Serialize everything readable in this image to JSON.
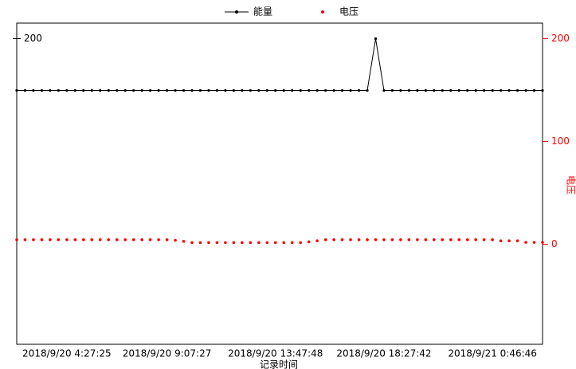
{
  "chart_data": {
    "type": "line",
    "legend": "top",
    "x_label": "记录时间",
    "y2_label": "电压",
    "categories": [
      null,
      null,
      null,
      null,
      null,
      null,
      "2018/9/20 4:27:25",
      null,
      null,
      null,
      null,
      null,
      null,
      null,
      null,
      null,
      null,
      null,
      "2018/9/20 9:07:27",
      null,
      null,
      null,
      null,
      null,
      null,
      null,
      null,
      null,
      null,
      null,
      null,
      "2018/9/20 13:47:48",
      null,
      null,
      null,
      null,
      null,
      null,
      null,
      null,
      null,
      null,
      null,
      null,
      "2018/9/20 18:27:42",
      null,
      null,
      null,
      null,
      null,
      null,
      null,
      null,
      null,
      null,
      null,
      null,
      "2018/9/21 0:46:46",
      null,
      null,
      null,
      null,
      null,
      null
    ],
    "series": [
      {
        "name": "能量",
        "color": "#000000",
        "marker": "dot-line",
        "values": [
          150,
          150,
          150,
          150,
          150,
          150,
          150,
          150,
          150,
          150,
          150,
          150,
          150,
          150,
          150,
          150,
          150,
          150,
          150,
          150,
          150,
          150,
          150,
          150,
          150,
          150,
          150,
          150,
          150,
          150,
          150,
          150,
          150,
          150,
          150,
          150,
          150,
          150,
          150,
          150,
          150,
          150,
          150,
          200,
          150,
          150,
          150,
          150,
          150,
          150,
          150,
          150,
          150,
          150,
          150,
          150,
          150,
          150,
          150,
          150,
          150,
          150,
          150,
          150
        ]
      },
      {
        "name": "电压",
        "color": "#ff0000",
        "marker": "dots",
        "axis": "y2",
        "values": [
          4.6,
          4.6,
          4.6,
          4.6,
          4.6,
          4.6,
          4.6,
          4.6,
          4.6,
          4.6,
          4.6,
          4.6,
          4.6,
          4.6,
          4.6,
          4.6,
          4.6,
          4.6,
          4.6,
          4,
          3,
          1.8,
          1.8,
          1.8,
          1.8,
          1.8,
          1.8,
          1.8,
          1.8,
          1.8,
          1.8,
          1.8,
          1.8,
          1.8,
          1.8,
          2.5,
          3.5,
          4.6,
          4.6,
          4.6,
          4.6,
          4.6,
          4.6,
          4.6,
          4.6,
          4.6,
          4.6,
          4.6,
          4.6,
          4.6,
          4.6,
          4.6,
          4.6,
          4.6,
          4.6,
          4.6,
          4.6,
          4.6,
          3.5,
          3.5,
          3.5,
          2,
          2,
          2
        ]
      }
    ],
    "ylim": [
      -95,
      215
    ],
    "yticks": [
      200
    ],
    "y2lim": [
      -97,
      215
    ],
    "y2ticks": [
      0,
      100,
      200
    ]
  }
}
